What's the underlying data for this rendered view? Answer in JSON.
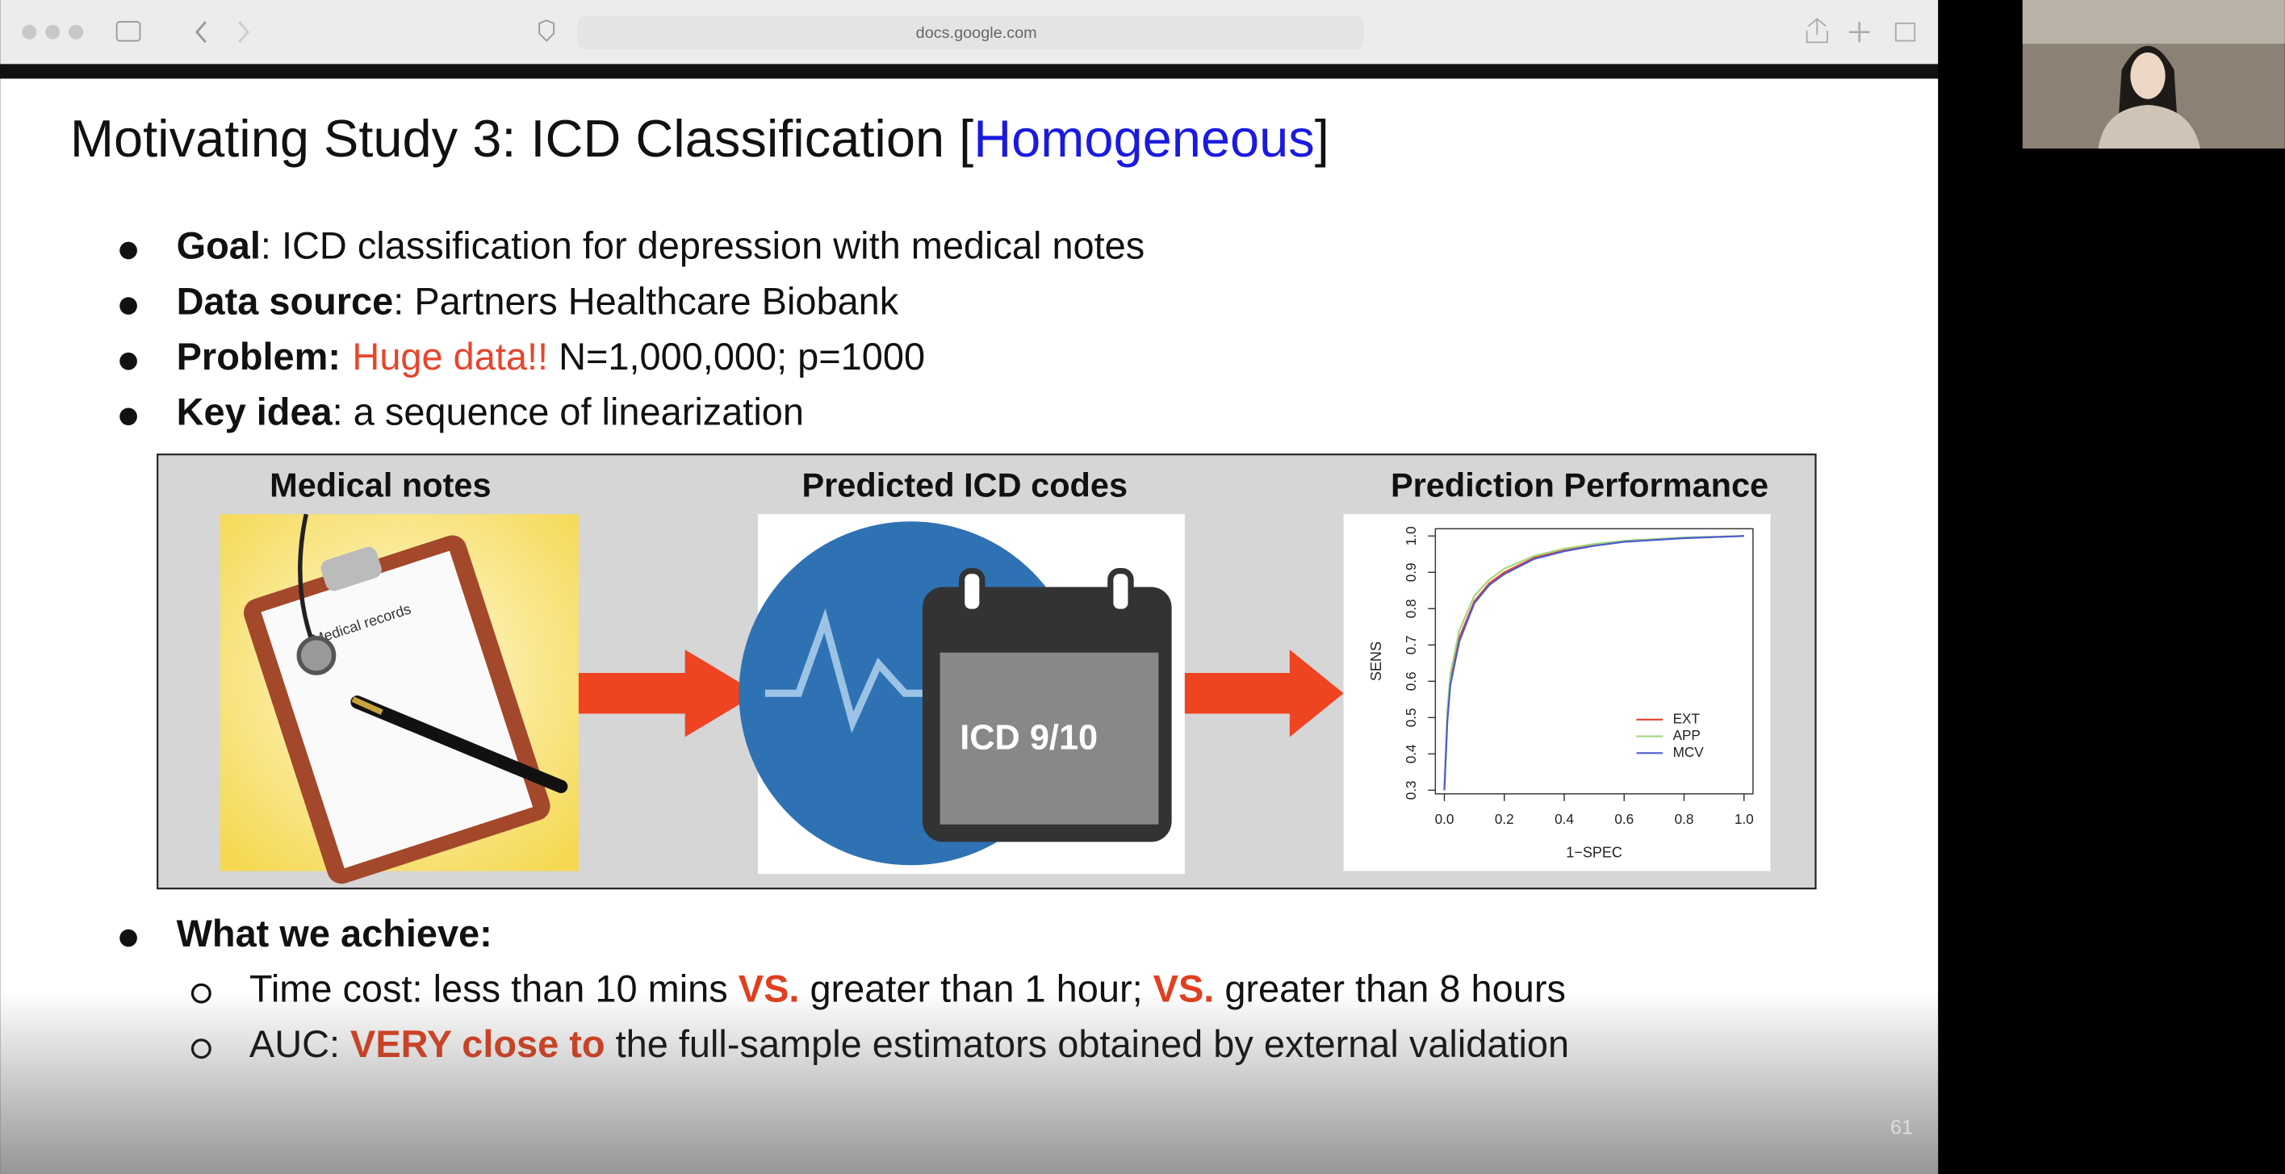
{
  "browser": {
    "url": "docs.google.com"
  },
  "slide": {
    "title": {
      "text": "Motivating Study 3: ICD Classification [",
      "highlight": "Homogeneous",
      "end": "]"
    },
    "bullets": [
      {
        "label": "Goal",
        "text": ": ICD classification for depression with medical notes"
      },
      {
        "label": "Data source",
        "text": ": Partners Healthcare Biobank"
      },
      {
        "label": "Problem:",
        "highlight": "Huge data!!",
        "text": " N=1,000,000; p=1000"
      },
      {
        "label": "Key idea",
        "text": ": a sequence of linearization"
      }
    ],
    "figure": {
      "panels": [
        "Medical notes",
        "Predicted ICD codes",
        "Prediction Performance"
      ],
      "clipboard_label": "Medical records",
      "calendar_label": "ICD 9/10"
    },
    "achieve": {
      "heading": "What we achieve:",
      "items": [
        [
          {
            "text": "Time cost: less than 10 mins "
          },
          {
            "text": "VS.",
            "em": true
          },
          {
            "text": " greater than 1 hour; "
          },
          {
            "text": "VS.",
            "em": true
          },
          {
            "text": " greater than 8 hours"
          }
        ],
        [
          {
            "text": "AUC: "
          },
          {
            "text": "VERY close to",
            "em": true
          },
          {
            "text": " the full-sample estimators obtained by external validation"
          }
        ]
      ]
    },
    "page_number": "61"
  },
  "chart_data": {
    "type": "line",
    "xlabel": "1−SPEC",
    "ylabel": "SENS",
    "xlim": [
      -0.03,
      1.03
    ],
    "ylim": [
      0.29,
      1.02
    ],
    "xticks": [
      {
        "value": 0,
        "label": "0.0"
      },
      {
        "value": 0.2,
        "label": "0.2"
      },
      {
        "value": 0.4,
        "label": "0.4"
      },
      {
        "value": 0.6,
        "label": "0.6"
      },
      {
        "value": 0.8,
        "label": "0.8"
      },
      {
        "value": 1,
        "label": "1.0"
      }
    ],
    "yticks": [
      0.3,
      0.4,
      0.5,
      0.6,
      0.7,
      0.8,
      0.9,
      {
        "value": 1,
        "label": "1.0"
      }
    ],
    "x": [
      0,
      0.01,
      0.02,
      0.05,
      0.1,
      0.15,
      0.2,
      0.3,
      0.4,
      0.5,
      0.6,
      0.8,
      1
    ],
    "legend": "lower right",
    "series": [
      {
        "name": "EXT",
        "color": "#e8402a",
        "values": [
          0.3,
          0.5,
          0.6,
          0.72,
          0.82,
          0.87,
          0.9,
          0.94,
          0.96,
          0.975,
          0.985,
          0.995,
          1
        ]
      },
      {
        "name": "APP",
        "color": "#9fd67a",
        "values": [
          0.3,
          0.52,
          0.62,
          0.74,
          0.835,
          0.88,
          0.91,
          0.945,
          0.965,
          0.978,
          0.987,
          0.996,
          1
        ]
      },
      {
        "name": "MCV",
        "color": "#4a5bd0",
        "values": [
          0.3,
          0.49,
          0.59,
          0.71,
          0.815,
          0.865,
          0.895,
          0.937,
          0.958,
          0.973,
          0.984,
          0.994,
          1
        ]
      }
    ]
  }
}
